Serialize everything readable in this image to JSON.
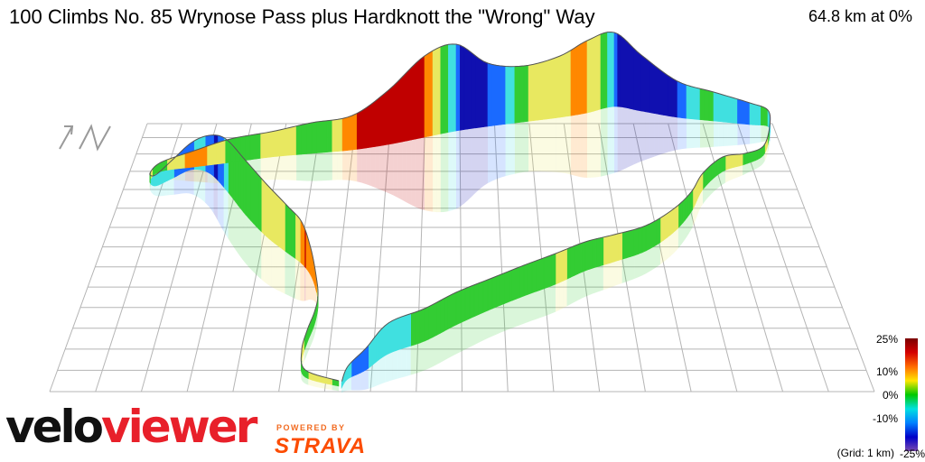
{
  "header": {
    "title": "100 Climbs No. 85 Wrynose Pass plus Hardknott the \"Wrong\" Way",
    "stat": "64.8 km at 0%"
  },
  "legend": {
    "labels": [
      "25%",
      "10%",
      "0%",
      "-10%",
      "-25%"
    ],
    "grid_note": "(Grid: 1 km)",
    "gradient_colors": [
      "#7a0000",
      "#d40000",
      "#ff6a00",
      "#ffe600",
      "#00c800",
      "#00e0e0",
      "#0080ff",
      "#0000c8",
      "#7a4ab0"
    ]
  },
  "branding": {
    "logo_velo": "velo",
    "logo_viewer": "viewer",
    "powered_by": "POWERED BY",
    "strava": "STRAVA",
    "brand_red": "#e8202a",
    "strava_orange": "#fc4c02"
  },
  "compass": {
    "icon": "north-arrow-icon"
  },
  "palette": {
    "steep_up": "#c00000",
    "up": "#ff8800",
    "mild_up": "#e8e860",
    "flat": "#33cc33",
    "mild_down": "#40e0e0",
    "down": "#1a6aff",
    "steep_down": "#1010b0"
  }
}
